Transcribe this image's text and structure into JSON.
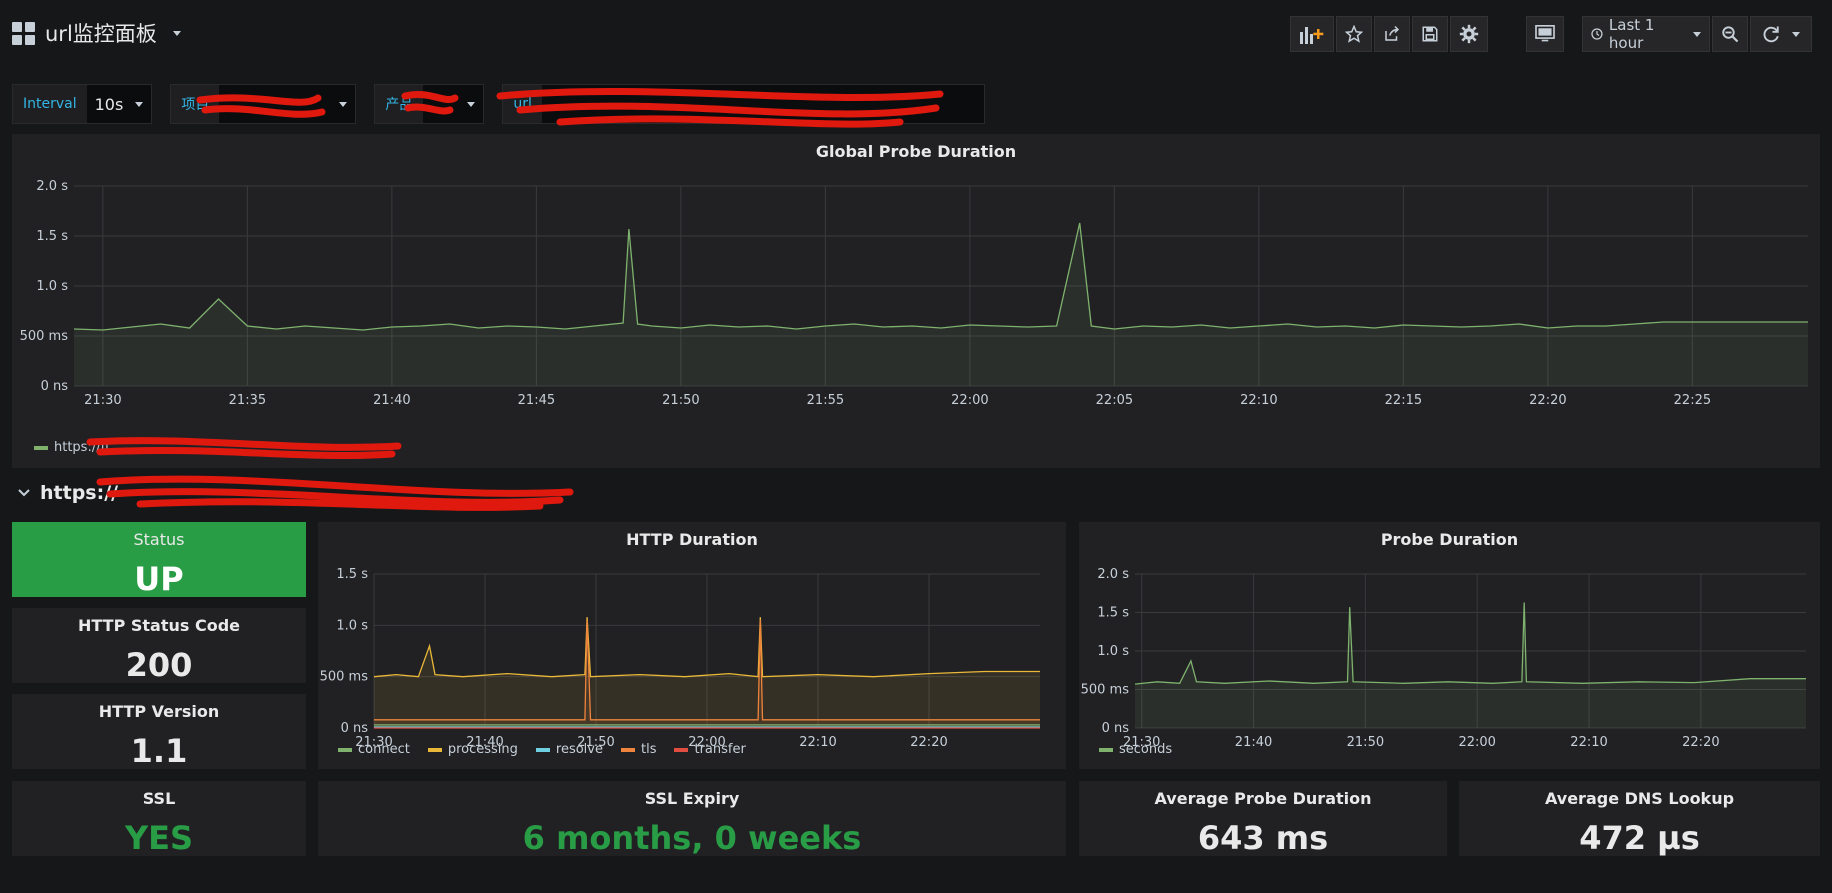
{
  "dashboard": {
    "title": "url监控面板"
  },
  "toolbar": {
    "add_panel_icon": "bar-chart-add-icon",
    "star_icon": "star-icon",
    "share_icon": "share-icon",
    "save_icon": "save-icon",
    "settings_icon": "gear-icon",
    "tv_icon": "monitor-icon",
    "time_range": "Last 1 hour",
    "zoom_icon": "zoom-out-icon",
    "refresh_icon": "refresh-icon"
  },
  "variables": [
    {
      "label": "Interval",
      "value": "10s"
    },
    {
      "label": "项目",
      "value": ""
    },
    {
      "label": "产品",
      "value": ""
    },
    {
      "label": "url",
      "value": ""
    }
  ],
  "global_panel": {
    "title": "Global Probe Duration",
    "legend": "https://fj",
    "legend_color": "#7eb26d"
  },
  "row": {
    "title": "https://"
  },
  "stats": {
    "status": {
      "title": "Status",
      "value": "UP",
      "bg": "#299c46"
    },
    "http_status_code": {
      "title": "HTTP Status Code",
      "value": "200"
    },
    "http_version": {
      "title": "HTTP Version",
      "value": "1.1"
    },
    "ssl": {
      "title": "SSL",
      "value": "YES",
      "color": "#299c46"
    },
    "ssl_expiry": {
      "title": "SSL Expiry",
      "value": "6 months, 0 weeks",
      "color": "#299c46"
    },
    "avg_probe": {
      "title": "Average Probe Duration",
      "value": "643 ms"
    },
    "avg_dns": {
      "title": "Average DNS Lookup",
      "value": "472 µs"
    }
  },
  "http_panel": {
    "title": "HTTP Duration",
    "legend": [
      {
        "name": "connect",
        "color": "#7eb26d"
      },
      {
        "name": "processing",
        "color": "#eab839"
      },
      {
        "name": "resolve",
        "color": "#6ed0e0"
      },
      {
        "name": "tls",
        "color": "#ef843c"
      },
      {
        "name": "transfer",
        "color": "#e24d42"
      }
    ]
  },
  "probe_panel": {
    "title": "Probe Duration",
    "legend": [
      {
        "name": "seconds",
        "color": "#7eb26d"
      }
    ]
  },
  "chart_data": [
    {
      "type": "line",
      "title": "Global Probe Duration",
      "x_ticks": [
        "21:30",
        "21:35",
        "21:40",
        "21:45",
        "21:50",
        "21:55",
        "22:00",
        "22:05",
        "22:10",
        "22:15",
        "22:20",
        "22:25"
      ],
      "y_ticks": [
        "0 ns",
        "500 ms",
        "1.0 s",
        "1.5 s",
        "2.0 s"
      ],
      "ylim": [
        0,
        2.0
      ],
      "y_unit": "s",
      "x_range_min": [
        0,
        60
      ],
      "series": [
        {
          "name": "https://fj",
          "color": "#7eb26d",
          "points": [
            [
              0,
              0.57
            ],
            [
              1,
              0.56
            ],
            [
              2,
              0.59
            ],
            [
              3,
              0.62
            ],
            [
              4,
              0.58
            ],
            [
              5,
              0.87
            ],
            [
              6,
              0.6
            ],
            [
              7,
              0.57
            ],
            [
              8,
              0.6
            ],
            [
              9,
              0.58
            ],
            [
              10,
              0.56
            ],
            [
              11,
              0.59
            ],
            [
              12,
              0.6
            ],
            [
              13,
              0.62
            ],
            [
              14,
              0.58
            ],
            [
              15,
              0.6
            ],
            [
              16,
              0.59
            ],
            [
              17,
              0.57
            ],
            [
              18,
              0.6
            ],
            [
              19,
              0.63
            ],
            [
              19.2,
              1.57
            ],
            [
              19.5,
              0.62
            ],
            [
              20,
              0.6
            ],
            [
              21,
              0.58
            ],
            [
              22,
              0.61
            ],
            [
              23,
              0.59
            ],
            [
              24,
              0.6
            ],
            [
              25,
              0.57
            ],
            [
              26,
              0.6
            ],
            [
              27,
              0.62
            ],
            [
              28,
              0.59
            ],
            [
              29,
              0.6
            ],
            [
              30,
              0.58
            ],
            [
              31,
              0.61
            ],
            [
              32,
              0.6
            ],
            [
              33,
              0.59
            ],
            [
              34,
              0.6
            ],
            [
              34.8,
              1.63
            ],
            [
              35.2,
              0.6
            ],
            [
              36,
              0.57
            ],
            [
              37,
              0.6
            ],
            [
              38,
              0.59
            ],
            [
              39,
              0.61
            ],
            [
              40,
              0.58
            ],
            [
              41,
              0.6
            ],
            [
              42,
              0.62
            ],
            [
              43,
              0.59
            ],
            [
              44,
              0.6
            ],
            [
              45,
              0.58
            ],
            [
              46,
              0.61
            ],
            [
              47,
              0.6
            ],
            [
              48,
              0.59
            ],
            [
              49,
              0.6
            ],
            [
              50,
              0.62
            ],
            [
              51,
              0.58
            ],
            [
              52,
              0.6
            ],
            [
              53,
              0.6
            ],
            [
              54,
              0.62
            ],
            [
              55,
              0.64
            ],
            [
              56,
              0.64
            ],
            [
              57,
              0.64
            ],
            [
              58,
              0.64
            ],
            [
              59,
              0.64
            ],
            [
              60,
              0.64
            ]
          ]
        }
      ]
    },
    {
      "type": "line",
      "title": "HTTP Duration",
      "x_ticks": [
        "21:30",
        "21:40",
        "21:50",
        "22:00",
        "22:10",
        "22:20"
      ],
      "y_ticks": [
        "0 ns",
        "500 ms",
        "1.0 s",
        "1.5 s"
      ],
      "ylim": [
        0,
        1.5
      ],
      "series": [
        {
          "name": "processing",
          "color": "#eab839",
          "points": [
            [
              0,
              0.5
            ],
            [
              2,
              0.52
            ],
            [
              4,
              0.5
            ],
            [
              5,
              0.8
            ],
            [
              5.5,
              0.52
            ],
            [
              8,
              0.5
            ],
            [
              12,
              0.53
            ],
            [
              16,
              0.5
            ],
            [
              19,
              0.52
            ],
            [
              19.2,
              1.08
            ],
            [
              19.5,
              0.5
            ],
            [
              24,
              0.52
            ],
            [
              28,
              0.5
            ],
            [
              32,
              0.53
            ],
            [
              34.6,
              0.5
            ],
            [
              34.8,
              1.08
            ],
            [
              35,
              0.5
            ],
            [
              40,
              0.52
            ],
            [
              45,
              0.5
            ],
            [
              50,
              0.53
            ],
            [
              55,
              0.55
            ],
            [
              60,
              0.55
            ]
          ]
        },
        {
          "name": "tls",
          "color": "#ef843c",
          "points": [
            [
              0,
              0.08
            ],
            [
              19,
              0.08
            ],
            [
              19.2,
              1.05
            ],
            [
              19.5,
              0.08
            ],
            [
              34.6,
              0.08
            ],
            [
              34.8,
              1.05
            ],
            [
              35,
              0.08
            ],
            [
              60,
              0.08
            ]
          ]
        },
        {
          "name": "connect",
          "color": "#7eb26d",
          "points": [
            [
              0,
              0.03
            ],
            [
              60,
              0.03
            ]
          ]
        },
        {
          "name": "resolve",
          "color": "#6ed0e0",
          "points": [
            [
              0,
              0.01
            ],
            [
              60,
              0.01
            ]
          ]
        },
        {
          "name": "transfer",
          "color": "#e24d42",
          "points": [
            [
              0,
              0.0
            ],
            [
              60,
              0.0
            ]
          ]
        }
      ]
    },
    {
      "type": "line",
      "title": "Probe Duration",
      "x_ticks": [
        "21:30",
        "21:40",
        "21:50",
        "22:00",
        "22:10",
        "22:20"
      ],
      "y_ticks": [
        "0 ns",
        "500 ms",
        "1.0 s",
        "1.5 s",
        "2.0 s"
      ],
      "ylim": [
        0,
        2.0
      ],
      "series": [
        {
          "name": "seconds",
          "color": "#7eb26d",
          "points": [
            [
              0,
              0.57
            ],
            [
              2,
              0.6
            ],
            [
              4,
              0.58
            ],
            [
              5,
              0.87
            ],
            [
              5.5,
              0.6
            ],
            [
              8,
              0.58
            ],
            [
              12,
              0.61
            ],
            [
              16,
              0.58
            ],
            [
              19,
              0.6
            ],
            [
              19.2,
              1.57
            ],
            [
              19.5,
              0.6
            ],
            [
              24,
              0.58
            ],
            [
              28,
              0.6
            ],
            [
              32,
              0.58
            ],
            [
              34.6,
              0.6
            ],
            [
              34.8,
              1.63
            ],
            [
              35,
              0.6
            ],
            [
              40,
              0.58
            ],
            [
              45,
              0.6
            ],
            [
              50,
              0.59
            ],
            [
              55,
              0.64
            ],
            [
              60,
              0.64
            ]
          ]
        }
      ]
    }
  ]
}
